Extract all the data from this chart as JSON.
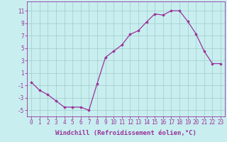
{
  "x": [
    0,
    1,
    2,
    3,
    4,
    5,
    6,
    7,
    8,
    9,
    10,
    11,
    12,
    13,
    14,
    15,
    16,
    17,
    18,
    19,
    20,
    21,
    22,
    23
  ],
  "y": [
    -0.5,
    -1.8,
    -2.5,
    -3.5,
    -4.5,
    -4.5,
    -4.5,
    -5.0,
    -0.7,
    3.5,
    4.5,
    5.5,
    7.2,
    7.8,
    9.2,
    10.5,
    10.3,
    11.0,
    11.0,
    9.3,
    7.3,
    4.5,
    2.5,
    2.5
  ],
  "line_color": "#993399",
  "marker": "D",
  "marker_size": 1.8,
  "bg_color": "#c8eef0",
  "grid_color": "#a0ccc8",
  "xlabel": "Windchill (Refroidissement éolien,°C)",
  "xlabel_fontsize": 6.5,
  "tick_fontsize": 5.5,
  "ylim": [
    -6,
    12.5
  ],
  "xlim": [
    -0.5,
    23.5
  ],
  "yticks": [
    -5,
    -3,
    -1,
    1,
    3,
    5,
    7,
    9,
    11
  ],
  "xticks": [
    0,
    1,
    2,
    3,
    4,
    5,
    6,
    7,
    8,
    9,
    10,
    11,
    12,
    13,
    14,
    15,
    16,
    17,
    18,
    19,
    20,
    21,
    22,
    23
  ]
}
